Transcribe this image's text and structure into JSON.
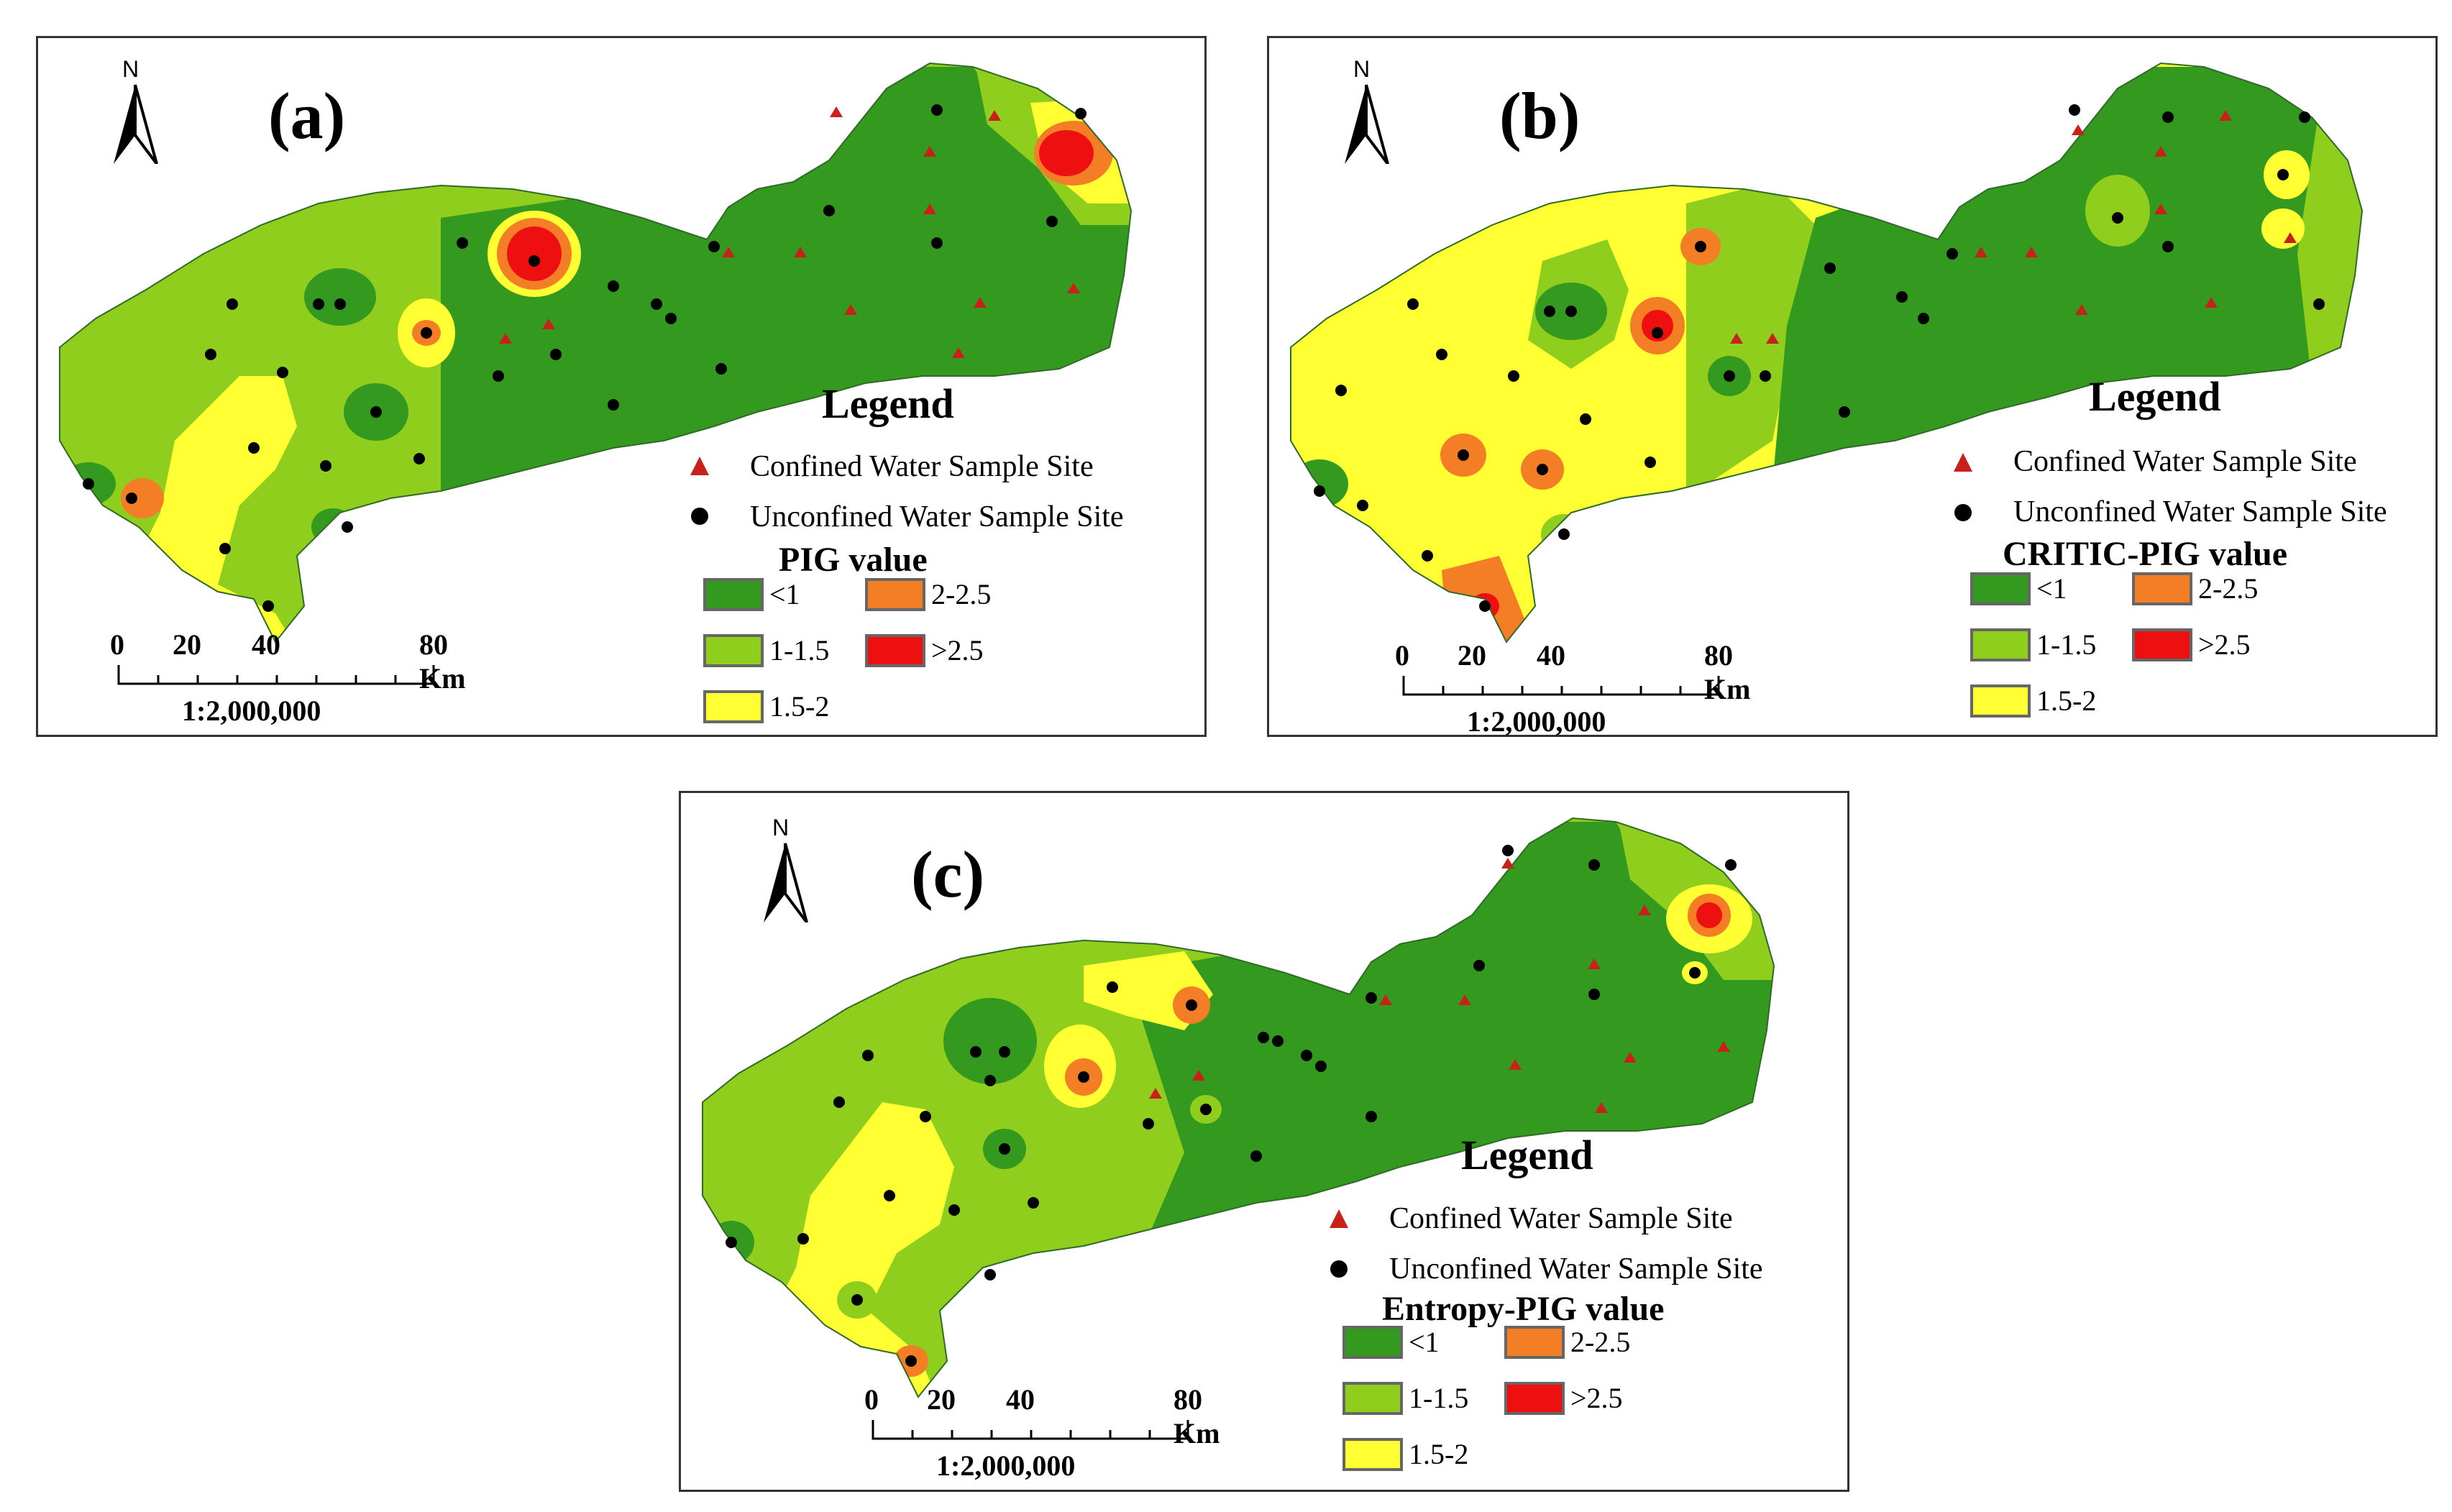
{
  "legend": {
    "title": "Legend",
    "confined_label": "Confined Water Sample Site",
    "unconfined_label": "Unconfined Water Sample Site",
    "classes": [
      {
        "label": "<1",
        "color": "#339a1f"
      },
      {
        "label": "1-1.5",
        "color": "#8fce1d"
      },
      {
        "label": "1.5-2",
        "color": "#ffff33"
      },
      {
        "label": "2-2.5",
        "color": "#f47e25"
      },
      {
        "label": ">2.5",
        "color": "#ee1010"
      }
    ]
  },
  "panels": [
    {
      "id": "a",
      "tag": "(a)",
      "value_title": "PIG value"
    },
    {
      "id": "b",
      "tag": "(b)",
      "value_title": "CRITIC-PIG value"
    },
    {
      "id": "c",
      "tag": "(c)",
      "value_title": "Entropy-PIG value"
    }
  ],
  "north_label": "N",
  "scale": {
    "ticks": [
      "0",
      "20",
      "40",
      "80 Km"
    ],
    "ratio": "1:2,000,000"
  }
}
